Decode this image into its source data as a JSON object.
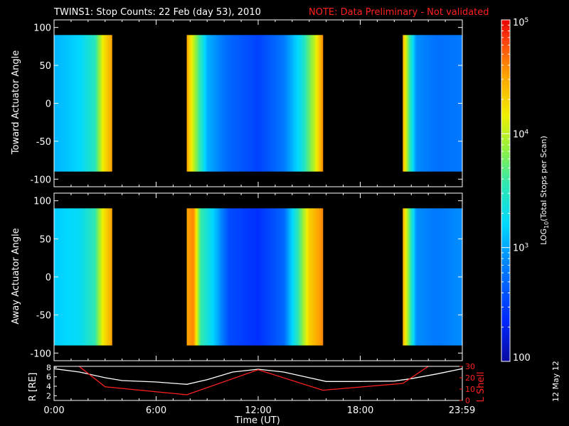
{
  "title": "TWINS1: Stop Counts: 22 Feb (day  53), 2010",
  "note": "NOTE: Data Preliminary - Not validated",
  "colors": {
    "background": "#000000",
    "axis": "#ffffff",
    "note": "#ff2020",
    "r_line": "#ffffff",
    "l_line": "#ff2020"
  },
  "stamp": "12 May 12",
  "chart_data": [
    {
      "type": "heatmap",
      "ylabel": "Toward Actuator Angle",
      "y_ticks": [
        "100",
        "50",
        "0",
        "-50",
        "-100"
      ],
      "ylim": [
        -110,
        110
      ],
      "xlim": [
        0,
        24
      ],
      "angle_range": [
        -90,
        90
      ],
      "data_intervals_hours": [
        [
          0,
          3.4
        ],
        [
          7.8,
          15.8
        ],
        [
          20.5,
          24
        ]
      ],
      "profile": [
        {
          "x": 0,
          "log": 3.05
        },
        {
          "x": 1.5,
          "log": 3.2
        },
        {
          "x": 2.4,
          "log": 3.5
        },
        {
          "x": 2.9,
          "log": 4.2
        },
        {
          "x": 3.4,
          "log": 4.5
        },
        {
          "x": 7.8,
          "log": 4.5
        },
        {
          "x": 8.3,
          "log": 3.9
        },
        {
          "x": 9.0,
          "log": 3.05
        },
        {
          "x": 10.3,
          "log": 2.7
        },
        {
          "x": 12.0,
          "log": 2.5
        },
        {
          "x": 13.5,
          "log": 2.8
        },
        {
          "x": 14.5,
          "log": 3.3
        },
        {
          "x": 15.3,
          "log": 4.0
        },
        {
          "x": 15.8,
          "log": 4.6
        },
        {
          "x": 20.5,
          "log": 4.5
        },
        {
          "x": 20.9,
          "log": 3.6
        },
        {
          "x": 21.3,
          "log": 2.9
        },
        {
          "x": 22.5,
          "log": 2.75
        },
        {
          "x": 24,
          "log": 2.8
        }
      ]
    },
    {
      "type": "heatmap",
      "ylabel": "Away Actuator Angle",
      "y_ticks": [
        "100",
        "50",
        "0",
        "-50",
        "-100"
      ],
      "ylim": [
        -110,
        110
      ],
      "xlim": [
        0,
        24
      ],
      "angle_range": [
        -90,
        90
      ],
      "data_intervals_hours": [
        [
          0,
          3.4
        ],
        [
          7.8,
          15.8
        ],
        [
          20.5,
          24
        ]
      ],
      "profile": [
        {
          "x": 0,
          "log": 3.15
        },
        {
          "x": 1.5,
          "log": 3.25
        },
        {
          "x": 2.4,
          "log": 3.55
        },
        {
          "x": 2.9,
          "log": 4.2
        },
        {
          "x": 3.4,
          "log": 4.5
        },
        {
          "x": 7.8,
          "log": 4.5
        },
        {
          "x": 8.2,
          "log": 4.6
        },
        {
          "x": 8.6,
          "log": 3.6
        },
        {
          "x": 9.5,
          "log": 3.1
        },
        {
          "x": 10.3,
          "log": 2.55
        },
        {
          "x": 12.0,
          "log": 2.4
        },
        {
          "x": 13.5,
          "log": 2.7
        },
        {
          "x": 14.3,
          "log": 3.5
        },
        {
          "x": 15.0,
          "log": 4.3
        },
        {
          "x": 15.8,
          "log": 4.6
        },
        {
          "x": 20.5,
          "log": 4.5
        },
        {
          "x": 20.9,
          "log": 3.7
        },
        {
          "x": 21.3,
          "log": 2.9
        },
        {
          "x": 22.5,
          "log": 2.8
        },
        {
          "x": 24,
          "log": 2.9
        }
      ]
    },
    {
      "type": "line",
      "ylabel_left": "R [RE]",
      "ylabel_right": "L Shell",
      "xlabel": "Time (UT)",
      "x_ticks": [
        "0:00",
        "6:00",
        "12:00",
        "18:00",
        "23:59"
      ],
      "x_tick_values": [
        0,
        6,
        12,
        18,
        23.98
      ],
      "y_left_ticks": [
        "8",
        "6",
        "4",
        "2"
      ],
      "y_left_values": [
        8,
        6,
        4,
        2
      ],
      "y_left_lim": [
        1,
        8.2
      ],
      "y_right_ticks": [
        "30",
        "20",
        "10",
        "0"
      ],
      "y_right_values": [
        30,
        20,
        10,
        0
      ],
      "y_right_lim": [
        0,
        30
      ],
      "series": [
        {
          "name": "R [RE]",
          "axis": "left",
          "x": [
            0,
            1.5,
            3.0,
            4.0,
            6.0,
            7.8,
            9.0,
            10.5,
            12.0,
            13.5,
            15.0,
            16.0,
            18.0,
            20.0,
            21.0,
            22.5,
            24.0
          ],
          "y": [
            7.7,
            7.0,
            5.8,
            5.2,
            4.9,
            4.4,
            5.4,
            7.0,
            7.6,
            7.0,
            5.8,
            5.0,
            5.0,
            5.1,
            5.6,
            6.6,
            7.7
          ]
        },
        {
          "name": "L Shell",
          "axis": "right",
          "x": [
            0,
            1.3,
            3.0,
            7.8,
            12.0,
            15.8,
            20.5,
            22.0,
            24.0
          ],
          "y": [
            40,
            32,
            12,
            5,
            27,
            9,
            15,
            30,
            45
          ]
        }
      ]
    },
    {
      "type": "colorbar",
      "scale": "log",
      "range": [
        100,
        100000
      ],
      "tick_labels": [
        "100",
        "10",
        "10",
        "10"
      ],
      "tick_exponents": [
        "",
        "3",
        "4",
        "5"
      ],
      "tick_values": [
        100,
        1000,
        10000,
        100000
      ],
      "label_main": "LOG",
      "label_sub": "10",
      "label_rest": "(Total Stops per Scan)"
    }
  ]
}
